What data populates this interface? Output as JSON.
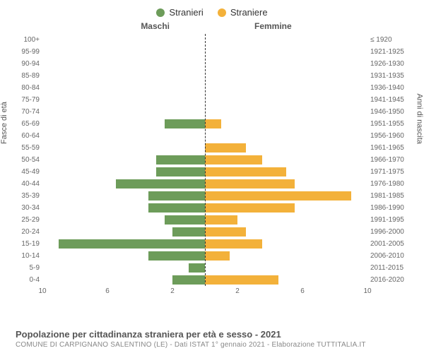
{
  "legend": {
    "male": "Stranieri",
    "female": "Straniere"
  },
  "colors": {
    "male": "#6d9c5a",
    "female": "#f3b13a",
    "centerline": "#333333",
    "text": "#555555",
    "tick": "#666666"
  },
  "column_labels": {
    "left": "Maschi",
    "right": "Femmine"
  },
  "axis_titles": {
    "left": "Fasce di età",
    "right": "Anni di nascita"
  },
  "xlim": 10,
  "x_ticks_left": [
    10,
    6,
    2
  ],
  "x_ticks_right": [
    2,
    6,
    10
  ],
  "rows": [
    {
      "age": "100+",
      "birth": "≤ 1920",
      "m": 0,
      "f": 0
    },
    {
      "age": "95-99",
      "birth": "1921-1925",
      "m": 0,
      "f": 0
    },
    {
      "age": "90-94",
      "birth": "1926-1930",
      "m": 0,
      "f": 0
    },
    {
      "age": "85-89",
      "birth": "1931-1935",
      "m": 0,
      "f": 0
    },
    {
      "age": "80-84",
      "birth": "1936-1940",
      "m": 0,
      "f": 0
    },
    {
      "age": "75-79",
      "birth": "1941-1945",
      "m": 0,
      "f": 0
    },
    {
      "age": "70-74",
      "birth": "1946-1950",
      "m": 0,
      "f": 0
    },
    {
      "age": "65-69",
      "birth": "1951-1955",
      "m": 2.5,
      "f": 1.0
    },
    {
      "age": "60-64",
      "birth": "1956-1960",
      "m": 0,
      "f": 0
    },
    {
      "age": "55-59",
      "birth": "1961-1965",
      "m": 0,
      "f": 2.5
    },
    {
      "age": "50-54",
      "birth": "1966-1970",
      "m": 3.0,
      "f": 3.5
    },
    {
      "age": "45-49",
      "birth": "1971-1975",
      "m": 3.0,
      "f": 5.0
    },
    {
      "age": "40-44",
      "birth": "1976-1980",
      "m": 5.5,
      "f": 5.5
    },
    {
      "age": "35-39",
      "birth": "1981-1985",
      "m": 3.5,
      "f": 9.0
    },
    {
      "age": "30-34",
      "birth": "1986-1990",
      "m": 3.5,
      "f": 5.5
    },
    {
      "age": "25-29",
      "birth": "1991-1995",
      "m": 2.5,
      "f": 2.0
    },
    {
      "age": "20-24",
      "birth": "1996-2000",
      "m": 2.0,
      "f": 2.5
    },
    {
      "age": "15-19",
      "birth": "2001-2005",
      "m": 9.0,
      "f": 3.5
    },
    {
      "age": "10-14",
      "birth": "2006-2010",
      "m": 3.5,
      "f": 1.5
    },
    {
      "age": "5-9",
      "birth": "2011-2015",
      "m": 1.0,
      "f": 0
    },
    {
      "age": "0-4",
      "birth": "2016-2020",
      "m": 2.0,
      "f": 4.5
    }
  ],
  "caption": {
    "title": "Popolazione per cittadinanza straniera per età e sesso - 2021",
    "sub": "COMUNE DI CARPIGNANO SALENTINO (LE) - Dati ISTAT 1° gennaio 2021 - Elaborazione TUTTITALIA.IT"
  }
}
